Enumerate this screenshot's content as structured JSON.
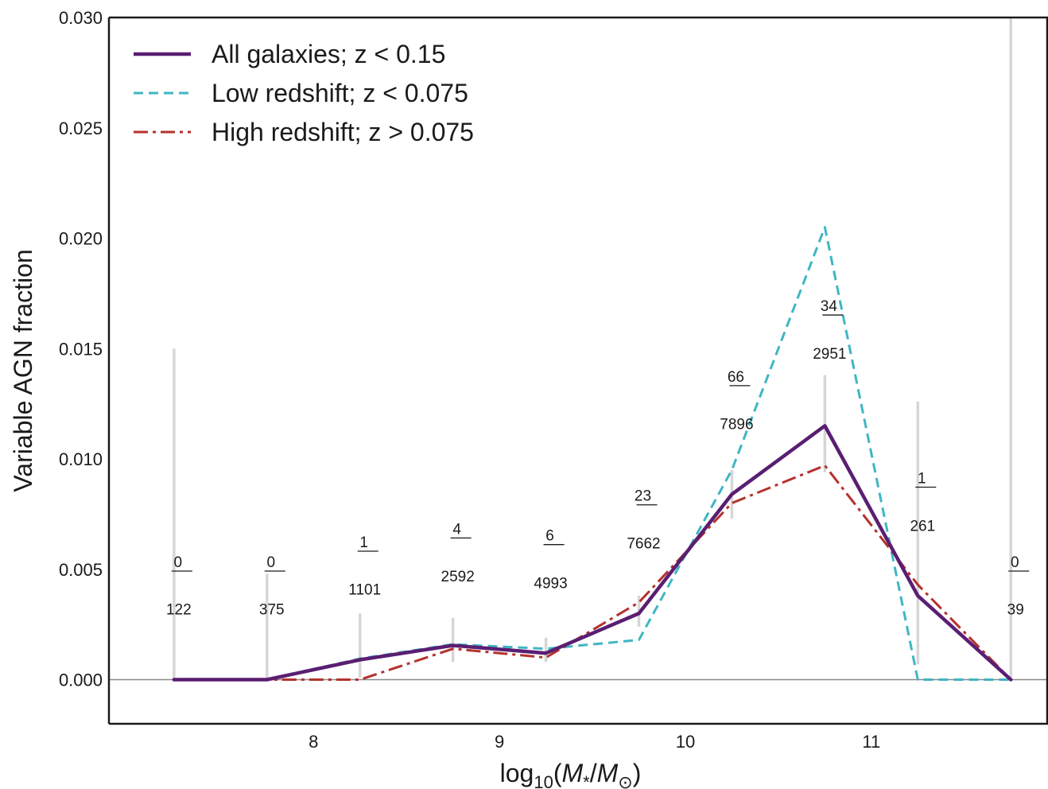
{
  "chart_data": {
    "type": "line",
    "title": "",
    "xlabel": "log10(M*/M⊙)",
    "ylabel": "Variable AGN fraction",
    "xlim": [
      6.9,
      11.95
    ],
    "ylim": [
      -0.002,
      0.03
    ],
    "grid": false,
    "legend_position": "top-left",
    "x_ticks": [
      8,
      9,
      10,
      11
    ],
    "x_tick_labels": [
      "8",
      "9",
      "10",
      "11"
    ],
    "y_ticks": [
      0.0,
      0.005,
      0.01,
      0.015,
      0.02,
      0.025,
      0.03
    ],
    "y_tick_labels": [
      "0.000",
      "0.005",
      "0.010",
      "0.015",
      "0.020",
      "0.025",
      "0.030"
    ],
    "x": [
      7.25,
      7.75,
      8.25,
      8.75,
      9.25,
      9.75,
      10.25,
      10.75,
      11.25,
      11.75
    ],
    "series": [
      {
        "name": "All galaxies; z < 0.15",
        "color": "#5a1e72",
        "style": "solid",
        "values": [
          0.0,
          0.0,
          0.0009,
          0.00155,
          0.0012,
          0.003,
          0.0084,
          0.0115,
          0.0038,
          0.0
        ]
      },
      {
        "name": "Low redshift; z < 0.075",
        "color": "#3fb6c2",
        "style": "dashed",
        "values": [
          0.0,
          0.0,
          0.00095,
          0.0016,
          0.0014,
          0.0018,
          0.0095,
          0.0205,
          0.0,
          0.0
        ]
      },
      {
        "name": "High redshift; z > 0.075",
        "color": "#b5312c",
        "style": "dashdot",
        "values": [
          0.0,
          0.0,
          0.0,
          0.0014,
          0.001,
          0.0035,
          0.008,
          0.0097,
          0.0043,
          0.0
        ]
      }
    ],
    "error_bars": [
      {
        "x": 7.25,
        "low": 0.0,
        "high": 0.015
      },
      {
        "x": 7.75,
        "low": 0.0,
        "high": 0.0048
      },
      {
        "x": 8.25,
        "low": 0.0001,
        "high": 0.003
      },
      {
        "x": 8.75,
        "low": 0.0008,
        "high": 0.0028
      },
      {
        "x": 9.25,
        "low": 0.0008,
        "high": 0.0019
      },
      {
        "x": 9.75,
        "low": 0.0024,
        "high": 0.0038
      },
      {
        "x": 10.25,
        "low": 0.0073,
        "high": 0.0095
      },
      {
        "x": 10.75,
        "low": 0.0094,
        "high": 0.0138
      },
      {
        "x": 11.25,
        "low": 0.0007,
        "high": 0.0126
      },
      {
        "x": 11.75,
        "low": 0.0,
        "high": 0.03
      }
    ],
    "annotations": [
      {
        "x": 7.25,
        "numerator": "0",
        "denominator": "122",
        "num_y": 0.0051,
        "den_y": 0.0032
      },
      {
        "x": 7.75,
        "numerator": "0",
        "denominator": "375",
        "num_y": 0.0051,
        "den_y": 0.0032
      },
      {
        "x": 8.25,
        "numerator": "1",
        "denominator": "1101",
        "num_y": 0.006,
        "den_y": 0.0041
      },
      {
        "x": 8.75,
        "numerator": "4",
        "denominator": "2592",
        "num_y": 0.0066,
        "den_y": 0.0047
      },
      {
        "x": 9.25,
        "numerator": "6",
        "denominator": "4993",
        "num_y": 0.0063,
        "den_y": 0.0044
      },
      {
        "x": 9.75,
        "numerator": "23",
        "denominator": "7662",
        "num_y": 0.0081,
        "den_y": 0.0062
      },
      {
        "x": 10.25,
        "numerator": "66",
        "denominator": "7896",
        "num_y": 0.0135,
        "den_y": 0.0116
      },
      {
        "x": 10.75,
        "numerator": "34",
        "denominator": "2951",
        "num_y": 0.0167,
        "den_y": 0.0148
      },
      {
        "x": 11.25,
        "numerator": "1",
        "denominator": "261",
        "num_y": 0.0089,
        "den_y": 0.007
      },
      {
        "x": 11.75,
        "numerator": "0",
        "denominator": "39",
        "num_y": 0.0051,
        "den_y": 0.0032
      }
    ]
  }
}
